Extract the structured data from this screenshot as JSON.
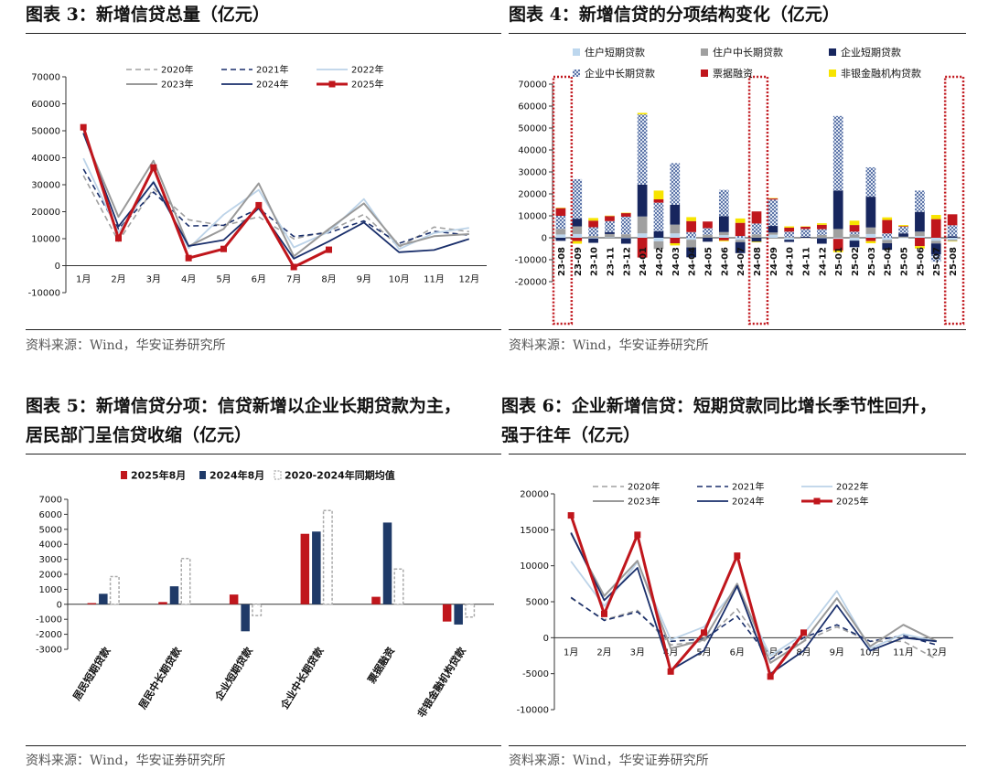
{
  "panels": {
    "p1": {
      "title": "图表 3：新增信贷总量（亿元）",
      "source": "资料来源：Wind，华安证券研究所"
    },
    "p2": {
      "title": "图表 4：新增信贷的分项结构变化（亿元）",
      "source": "资料来源：Wind，华安证券研究所"
    },
    "p3": {
      "title_line1": "图表 5：新增信贷分项：信贷新增以企业长期贷款为主，",
      "title_line2": "居民部门呈信贷收缩（亿元）",
      "source": "资料来源：Wind，华安证券研究所"
    },
    "p4": {
      "title_line1": "图表 6：企业新增信贷：短期贷款同比增长季节性回升，",
      "title_line2": "强于往年（亿元）",
      "source": "资料来源：Wind，华安证券研究所"
    }
  },
  "chart_data": [
    {
      "id": "chart3",
      "type": "line",
      "categories": [
        "1月",
        "2月",
        "3月",
        "4月",
        "5月",
        "6月",
        "7月",
        "8月",
        "9月",
        "10月",
        "11月",
        "12月"
      ],
      "ylim": [
        -10000,
        70000
      ],
      "yticks": [
        -10000,
        0,
        10000,
        20000,
        30000,
        40000,
        50000,
        60000,
        70000
      ],
      "legend_placement": "top",
      "series": [
        {
          "name": "2020年",
          "color": "#a0a0a0",
          "dash": "6,4",
          "width": 1.6,
          "values": [
            33400,
            9057,
            28500,
            17000,
            14800,
            18100,
            9927,
            12800,
            19000,
            6898,
            14300,
            12600
          ]
        },
        {
          "name": "2021年",
          "color": "#1a2f6b",
          "dash": "6,4",
          "width": 1.6,
          "values": [
            35800,
            13600,
            27300,
            14700,
            15000,
            21200,
            10800,
            12200,
            16600,
            8262,
            12700,
            11300
          ]
        },
        {
          "name": "2022年",
          "color": "#bcd3e8",
          "dash": "",
          "width": 1.8,
          "values": [
            39800,
            12300,
            31300,
            6454,
            18900,
            28100,
            6790,
            12500,
            24700,
            6152,
            12100,
            14000
          ]
        },
        {
          "name": "2023年",
          "color": "#999999",
          "dash": "",
          "width": 2.0,
          "values": [
            49000,
            18100,
            38900,
            7188,
            13600,
            30500,
            3459,
            13600,
            23100,
            7384,
            10900,
            11700
          ]
        },
        {
          "name": "2024年",
          "color": "#1a2f6b",
          "dash": "",
          "width": 1.8,
          "values": [
            49200,
            14500,
            30900,
            7300,
            9500,
            21300,
            2600,
            9000,
            16000,
            5000,
            5800,
            9900
          ]
        },
        {
          "name": "2025年",
          "color": "#c0161c",
          "dash": "",
          "width": 3.0,
          "marker": true,
          "values": [
            51300,
            10100,
            36400,
            2800,
            6200,
            22400,
            -500,
            5900,
            null,
            null,
            null,
            null
          ]
        }
      ]
    },
    {
      "id": "chart4",
      "type": "bar",
      "stacked": true,
      "categories": [
        "23-08",
        "23-09",
        "23-10",
        "23-11",
        "23-12",
        "24-01",
        "24-02",
        "24-03",
        "24-04",
        "24-05",
        "24-06",
        "24-07",
        "24-08",
        "24-09",
        "24-10",
        "24-11",
        "24-12",
        "25-01",
        "25-02",
        "25-03",
        "25-04",
        "25-05",
        "25-06",
        "25-07",
        "25-08"
      ],
      "ylim": [
        -20000,
        70000
      ],
      "yticks": [
        -20000,
        -10000,
        0,
        10000,
        20000,
        30000,
        40000,
        50000,
        60000,
        70000
      ],
      "legend_placement": "top",
      "highlighted_categories": [
        "23-08",
        "24-08",
        "25-08"
      ],
      "series": [
        {
          "name": "住户短期贷款",
          "color": "#bdd7ee",
          "values": [
            1500,
            1700,
            -300,
            200,
            -200,
            2000,
            -1600,
            2000,
            -900,
            100,
            1200,
            -1000,
            0,
            1400,
            -900,
            0,
            -200,
            -500,
            -1300,
            1700,
            -1000,
            -100,
            800,
            -1400,
            -900
          ]
        },
        {
          "name": "住户中长期贷款",
          "color": "#a0a0a0",
          "values": [
            2500,
            3500,
            800,
            1500,
            1600,
            7700,
            -3500,
            4000,
            -3500,
            1300,
            1400,
            -1000,
            1500,
            1000,
            300,
            -100,
            1300,
            4000,
            1500,
            3000,
            -1500,
            500,
            2000,
            -1200,
            -600
          ]
        },
        {
          "name": "企业短期贷款",
          "color": "#17265e",
          "values": [
            -1400,
            3500,
            -2000,
            900,
            -2500,
            14500,
            3000,
            9000,
            -4500,
            -1800,
            7200,
            -5000,
            -1800,
            3000,
            -1000,
            500,
            -2500,
            17500,
            -3000,
            14000,
            -3000,
            1500,
            9000,
            -5000,
            700
          ]
        },
        {
          "name": "企业中长期贷款",
          "color": "#9fb0d0",
          "pattern": true,
          "values": [
            6000,
            18000,
            4000,
            5000,
            8000,
            32000,
            13000,
            19000,
            2600,
            3000,
            12000,
            800,
            5000,
            12000,
            2500,
            3500,
            2600,
            34000,
            1300,
            13400,
            2000,
            3000,
            9700,
            -3300,
            5000
          ]
        },
        {
          "name": "票据融资",
          "color": "#c0161c",
          "values": [
            3500,
            -1500,
            3000,
            2300,
            1700,
            -9000,
            1500,
            -2500,
            5000,
            3000,
            -1200,
            6000,
            5500,
            500,
            1800,
            1000,
            2000,
            -5300,
            3000,
            -1500,
            6100,
            300,
            -3800,
            8500,
            5000
          ]
        },
        {
          "name": "非银金融机构贷款",
          "color": "#f7e400",
          "values": [
            200,
            -1200,
            1200,
            200,
            100,
            700,
            4000,
            -1000,
            1800,
            0,
            -400,
            2000,
            -300,
            200,
            600,
            200,
            700,
            -800,
            2000,
            -1000,
            1200,
            500,
            -1100,
            1900,
            -100
          ]
        }
      ]
    },
    {
      "id": "chart5",
      "type": "bar",
      "categories": [
        "居民短期贷款",
        "居民中长期贷款",
        "企业短期贷款",
        "企业中长期贷款",
        "票据融资",
        "非银金融机构贷款"
      ],
      "ylim": [
        -3000,
        7000
      ],
      "yticks": [
        -3000,
        -2000,
        -1000,
        0,
        1000,
        2000,
        3000,
        4000,
        5000,
        6000,
        7000
      ],
      "legend_placement": "top",
      "series": [
        {
          "name": "2025年8月",
          "color": "#c0161c",
          "values": [
            80,
            150,
            650,
            4700,
            500,
            -1150
          ]
        },
        {
          "name": "2024年8月",
          "color": "#1f3a68",
          "values": [
            700,
            1200,
            -1800,
            4850,
            5450,
            -1350
          ]
        },
        {
          "name": "2020-2024年同期均值",
          "color": "#ffffff",
          "outline": "#aaaaaa",
          "values": [
            1850,
            3050,
            -750,
            6250,
            2350,
            -850
          ]
        }
      ]
    },
    {
      "id": "chart6",
      "type": "line",
      "categories": [
        "1月",
        "2月",
        "3月",
        "4月",
        "5月",
        "6月",
        "7月",
        "8月",
        "9月",
        "10月",
        "11月",
        "12月"
      ],
      "ylim": [
        -10000,
        20000
      ],
      "yticks": [
        -10000,
        -5000,
        0,
        5000,
        10000,
        15000,
        20000
      ],
      "legend_placement": "top",
      "series": [
        {
          "name": "2020年",
          "color": "#a0a0a0",
          "dash": "6,4",
          "width": 1.6,
          "values": [
            5500,
            2500,
            3800,
            -1000,
            -500,
            4000,
            -2500,
            -500,
            1500,
            -500,
            -500,
            -3000
          ]
        },
        {
          "name": "2021年",
          "color": "#1a2f6b",
          "dash": "6,4",
          "width": 1.6,
          "values": [
            5600,
            2400,
            3600,
            -500,
            -200,
            3000,
            -3000,
            0,
            1800,
            -500,
            300,
            -1000
          ]
        },
        {
          "name": "2022年",
          "color": "#bcd3e8",
          "dash": "",
          "width": 1.8,
          "values": [
            10600,
            4400,
            10500,
            -300,
            1500,
            7000,
            -2500,
            500,
            6500,
            -1500,
            500,
            -500
          ]
        },
        {
          "name": "2023年",
          "color": "#999999",
          "dash": "",
          "width": 2.0,
          "values": [
            14500,
            5800,
            10700,
            -1500,
            -300,
            7500,
            -3500,
            -500,
            5500,
            -1200,
            1800,
            -500
          ]
        },
        {
          "name": "2024年",
          "color": "#1a2f6b",
          "dash": "",
          "width": 1.8,
          "values": [
            14600,
            5200,
            9700,
            -4500,
            -1800,
            7200,
            -5000,
            -1800,
            4500,
            -1800,
            0,
            -500
          ]
        },
        {
          "name": "2025年",
          "color": "#c0161c",
          "dash": "",
          "width": 3.0,
          "marker": true,
          "values": [
            17000,
            3300,
            14300,
            -4700,
            700,
            11400,
            -5400,
            700,
            null,
            null,
            null,
            null
          ]
        }
      ]
    }
  ]
}
